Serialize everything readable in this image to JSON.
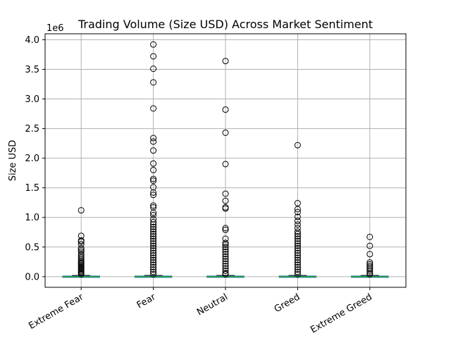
{
  "chart_data": {
    "type": "box",
    "title": "Trading Volume (Size USD) Across Market Sentiment",
    "xlabel": "",
    "ylabel": "Size USD",
    "y_offset_label": "1e6",
    "ylim": [
      -180000,
      4100000
    ],
    "grid": true,
    "legend": "none",
    "y_ticks": [
      0,
      500000,
      1000000,
      1500000,
      2000000,
      2500000,
      3000000,
      3500000,
      4000000
    ],
    "y_tick_labels": [
      "0.0",
      "0.5",
      "1.0",
      "1.5",
      "2.0",
      "2.5",
      "3.0",
      "3.5",
      "4.0"
    ],
    "categories": [
      "Extreme Fear",
      "Fear",
      "Neutral",
      "Greed",
      "Extreme Greed"
    ],
    "boxes": [
      {
        "name": "Extreme Fear",
        "q1": 0,
        "median": 1000,
        "q3": 8000,
        "whisker_low": 0,
        "whisker_high": 20000,
        "outliers": [
          1120000,
          690000,
          610000,
          590000,
          550000,
          480000,
          450000,
          420000,
          380000,
          350000,
          320000,
          290000,
          260000,
          240000,
          220000,
          200000,
          180000,
          160000,
          140000,
          120000,
          100000,
          80000,
          60000,
          40000
        ]
      },
      {
        "name": "Fear",
        "q1": 0,
        "median": 1000,
        "q3": 8000,
        "whisker_low": 0,
        "whisker_high": 20000,
        "outliers": [
          3920000,
          3720000,
          3510000,
          3280000,
          2840000,
          2340000,
          2280000,
          2130000,
          1910000,
          1800000,
          1650000,
          1620000,
          1510000,
          1420000,
          1380000,
          1200000,
          1170000,
          1080000,
          1040000,
          970000,
          920000,
          880000,
          840000,
          800000,
          760000,
          720000,
          680000,
          640000,
          600000,
          560000,
          520000,
          480000,
          440000,
          400000,
          360000,
          320000,
          280000,
          240000,
          200000,
          160000,
          120000,
          80000,
          40000
        ]
      },
      {
        "name": "Neutral",
        "q1": 0,
        "median": 1000,
        "q3": 8000,
        "whisker_low": 0,
        "whisker_high": 20000,
        "outliers": [
          3640000,
          2820000,
          2430000,
          1900000,
          1400000,
          1280000,
          1170000,
          1150000,
          820000,
          790000,
          640000,
          570000,
          540000,
          500000,
          460000,
          420000,
          380000,
          340000,
          300000,
          260000,
          220000,
          180000,
          140000,
          100000,
          60000,
          40000
        ]
      },
      {
        "name": "Greed",
        "q1": 0,
        "median": 1000,
        "q3": 8000,
        "whisker_low": 0,
        "whisker_high": 20000,
        "outliers": [
          2220000,
          1240000,
          1140000,
          1090000,
          1010000,
          940000,
          880000,
          820000,
          760000,
          720000,
          680000,
          640000,
          600000,
          560000,
          520000,
          480000,
          440000,
          400000,
          360000,
          320000,
          280000,
          240000,
          200000,
          160000,
          120000,
          80000,
          40000
        ]
      },
      {
        "name": "Extreme Greed",
        "q1": 0,
        "median": 1000,
        "q3": 8000,
        "whisker_low": 0,
        "whisker_high": 20000,
        "outliers": [
          670000,
          520000,
          380000,
          240000,
          210000,
          180000,
          150000,
          120000,
          90000,
          60000,
          40000
        ]
      }
    ],
    "colors": {
      "box": "#1f77b4",
      "median": "#2ca02c",
      "whisker": "#000000",
      "outlier_edge": "#000000",
      "grid": "#b0b0b0"
    }
  }
}
